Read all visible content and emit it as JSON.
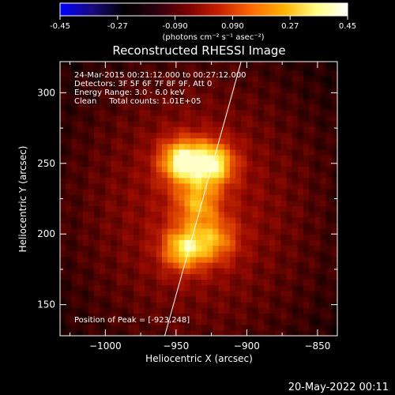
{
  "colorbar": {
    "ticks": [
      "-0.45",
      "-0.27",
      "-0.090",
      "0.090",
      "0.27",
      "0.45"
    ],
    "units": "(photons cm⁻² s⁻¹ asec⁻²)",
    "stops": [
      "#0000ff",
      "#1a0a80",
      "#000000",
      "#2a0010",
      "#7a0000",
      "#c82000",
      "#ff6a00",
      "#ffb000",
      "#ffff80",
      "#ffffff"
    ]
  },
  "chart_data": {
    "type": "heatmap",
    "title": "Reconstructed RHESSI Image",
    "xlabel": "Heliocentric X (arcsec)",
    "ylabel": "Heliocentric Y (arcsec)",
    "xlim": [
      -1032,
      -836
    ],
    "ylim": [
      128,
      322
    ],
    "x_ticks": [
      {
        "value": -1000,
        "label": "−1000"
      },
      {
        "value": -950,
        "label": "−950"
      },
      {
        "value": -900,
        "label": "−900"
      },
      {
        "value": -850,
        "label": "−850"
      }
    ],
    "y_ticks": [
      {
        "value": 150,
        "label": "150"
      },
      {
        "value": 200,
        "label": "200"
      },
      {
        "value": 250,
        "label": "250"
      },
      {
        "value": 300,
        "label": "300"
      }
    ],
    "sources": [
      {
        "x": -946,
        "y": 252,
        "peak": 1.0
      },
      {
        "x": -924,
        "y": 250,
        "peak": 0.95
      },
      {
        "x": -944,
        "y": 190,
        "peak": 0.85
      },
      {
        "x": -922,
        "y": 196,
        "peak": 0.55
      },
      {
        "x": -935,
        "y": 222,
        "peak": 0.6
      }
    ],
    "limb_line": [
      [
        -958,
        128
      ],
      [
        -904,
        322
      ]
    ],
    "annotations": [
      "24-Mar-2015 00:21:12.000 to 00:27:12.000",
      "Detectors: 3F 5F 6F 7F 8F 9F, Att 0",
      "Energy Range: 3.0 - 6.0 keV",
      "Clean     Total counts: 1.01E+05"
    ],
    "peak_label": "Position of Peak = [-923,248]"
  },
  "footer_date": "20-May-2022 00:11"
}
